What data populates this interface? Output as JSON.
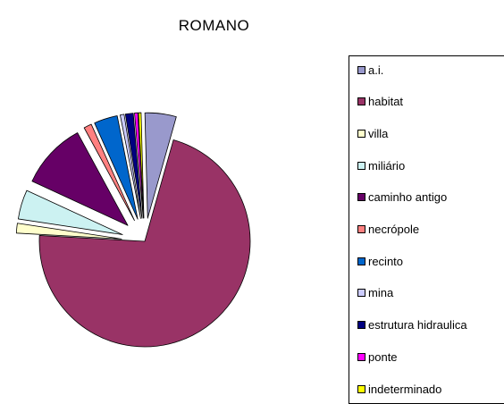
{
  "chart_data": {
    "type": "pie",
    "title": "ROMANO",
    "exploded": true,
    "legend_position": "right",
    "series": [
      {
        "name": "a.i.",
        "value": 4.8,
        "color": "#9999CC"
      },
      {
        "name": "habitat",
        "value": 71.5,
        "color": "#993366"
      },
      {
        "name": "villa",
        "value": 1.5,
        "color": "#FFFFCC"
      },
      {
        "name": "miliário",
        "value": 4.5,
        "color": "#CCF2F2"
      },
      {
        "name": "caminho antigo",
        "value": 10.2,
        "color": "#660066"
      },
      {
        "name": "necrópole",
        "value": 1.2,
        "color": "#FF8080"
      },
      {
        "name": "recinto",
        "value": 3.6,
        "color": "#0066CC"
      },
      {
        "name": "mina",
        "value": 0.6,
        "color": "#CCCCFF"
      },
      {
        "name": "estrutura hidraulica",
        "value": 1.2,
        "color": "#000080"
      },
      {
        "name": "ponte",
        "value": 0.5,
        "color": "#FF00FF"
      },
      {
        "name": "indeterminado",
        "value": 0.4,
        "color": "#FFFF00"
      }
    ]
  }
}
